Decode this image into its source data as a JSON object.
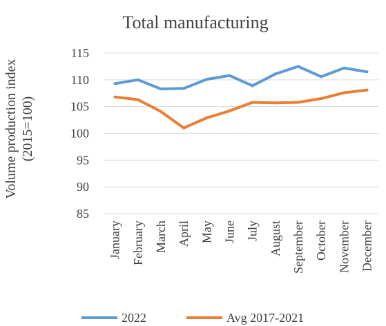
{
  "chart_data": {
    "type": "line",
    "title": "Total manufacturing",
    "ylabel_line1": "Volume production index",
    "ylabel_line2": "(2015=100)",
    "xlabel": "",
    "categories": [
      "January",
      "February",
      "March",
      "April",
      "May",
      "June",
      "July",
      "August",
      "September",
      "October",
      "November",
      "December"
    ],
    "ylim": [
      85,
      115
    ],
    "yticks": [
      85,
      90,
      95,
      100,
      105,
      110,
      115
    ],
    "grid": true,
    "legend_position": "bottom",
    "series": [
      {
        "name": "2022",
        "color": "#5b9bd5",
        "values": [
          109.3,
          110.0,
          108.3,
          108.4,
          110.1,
          110.8,
          108.9,
          111.1,
          112.5,
          110.6,
          112.2,
          111.5
        ]
      },
      {
        "name": "Avg 2017-2021",
        "color": "#ed7d31",
        "values": [
          106.8,
          106.3,
          104.1,
          101.0,
          102.9,
          104.2,
          105.8,
          105.7,
          105.8,
          106.5,
          107.6,
          108.1
        ]
      }
    ]
  }
}
